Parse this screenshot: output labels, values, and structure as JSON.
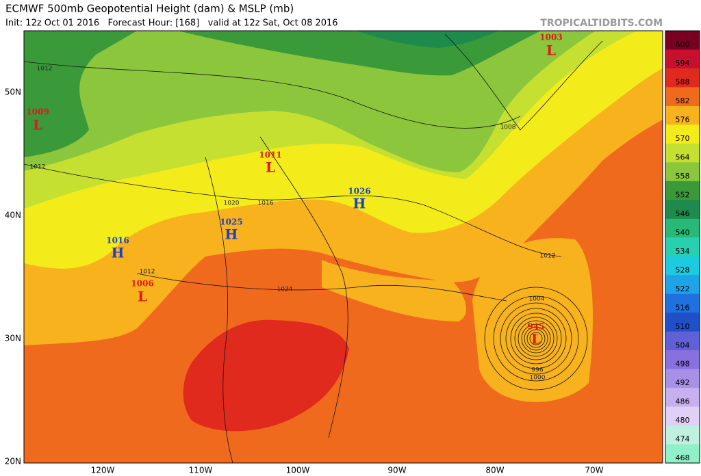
{
  "header": {
    "title": "ECMWF 500mb Geopotential Height (dam) & MSLP (mb)",
    "subtitle": "Init: 12z Oct 01 2016   Forecast Hour: [168]   valid at 12z Sat, Oct 08 2016",
    "watermark": "TROPICALTIDBITS.COM"
  },
  "map": {
    "longitude_labels": [
      "120W",
      "110W",
      "100W",
      "90W",
      "80W",
      "70W"
    ],
    "latitude_labels": [
      "50N",
      "40N",
      "30N",
      "20N"
    ],
    "pressure_centers": [
      {
        "value": "1009",
        "letter": "L"
      },
      {
        "value": "1003",
        "letter": "L"
      },
      {
        "value": "1011",
        "letter": "L"
      },
      {
        "value": "1026",
        "letter": "H"
      },
      {
        "value": "1016",
        "letter": "H"
      },
      {
        "value": "1025",
        "letter": "H"
      },
      {
        "value": "1006",
        "letter": "L"
      },
      {
        "value": "945",
        "letter": "L"
      }
    ],
    "isobar_labels": [
      "1012",
      "1012",
      "1008",
      "1020",
      "1016",
      "1012",
      "1024",
      "1012",
      "1004",
      "996",
      "1000"
    ]
  },
  "colorbar": {
    "labels": [
      "600",
      "594",
      "588",
      "582",
      "576",
      "570",
      "564",
      "558",
      "552",
      "546",
      "540",
      "534",
      "528",
      "522",
      "516",
      "510",
      "504",
      "498",
      "492",
      "486",
      "480",
      "474",
      "468"
    ],
    "colors": [
      "#7a0022",
      "#c8102e",
      "#e02a1e",
      "#f06a1e",
      "#f8b21e",
      "#f4ec1a",
      "#c6e032",
      "#8cc63c",
      "#3a9a3a",
      "#1e8a4c",
      "#28b878",
      "#28d0b0",
      "#1ecae0",
      "#1ea2e8",
      "#2070e0",
      "#2050c8",
      "#6060d8",
      "#8870e0",
      "#a890e8",
      "#c8b0f0",
      "#e0d0f8",
      "#c0f0e0",
      "#90f0c8"
    ]
  }
}
